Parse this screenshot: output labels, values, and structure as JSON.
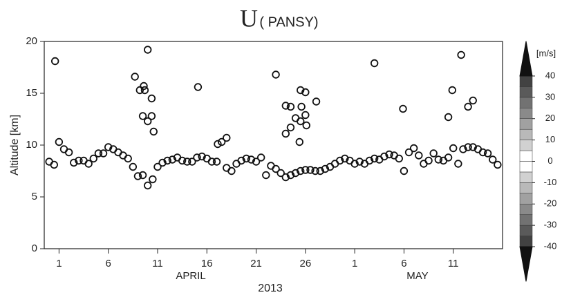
{
  "chart_data": {
    "type": "scatter",
    "title": "U",
    "subtitle": "( PANSY)",
    "y_label": "Altitude [km]",
    "x_month_labels": [
      "APRIL",
      "MAY"
    ],
    "x_year_label": "2013",
    "xlim": [
      -0.5,
      46
    ],
    "ylim": [
      0,
      20
    ],
    "xticks": [
      1,
      6,
      11,
      16,
      21,
      26,
      {
        "value": 31,
        "label": "1"
      },
      {
        "value": 36,
        "label": "6"
      },
      {
        "value": 41,
        "label": "11"
      }
    ],
    "yticks": [
      0,
      5,
      10,
      15,
      20
    ],
    "series": [
      {
        "color": "#111111",
        "x": [
          0,
          0.5,
          1,
          1.5,
          2,
          2.5,
          3,
          3.5,
          4,
          4.5,
          5,
          5.5,
          6,
          6.5,
          7,
          7.5,
          8,
          8.5,
          9,
          9.5,
          10,
          10.5,
          11,
          11.5,
          12,
          12.5,
          13,
          13.5,
          14,
          14.5,
          15,
          15.5,
          16,
          16.5,
          17,
          17.5,
          18,
          18.5,
          19,
          19.5,
          20,
          20.5,
          21,
          21.5,
          22,
          22.5,
          23,
          23.5,
          24,
          24.5,
          25,
          25.5,
          26,
          26.5,
          27,
          27.5,
          28,
          28.5,
          29,
          29.5,
          30,
          30.5,
          31,
          31.5,
          32,
          32.5,
          33,
          33.5,
          34,
          34.5,
          35,
          35.5,
          36,
          36.5,
          37,
          37.5,
          38,
          38.5,
          39,
          39.5,
          40,
          40.5,
          41,
          41.5,
          42,
          42.5,
          43,
          43.5,
          44,
          44.5,
          45,
          45.5
        ],
        "values": [
          8.4,
          8.1,
          10.3,
          9.6,
          9.3,
          8.3,
          8.5,
          8.5,
          8.2,
          8.7,
          9.2,
          9.2,
          9.8,
          9.6,
          9.3,
          9.0,
          8.7,
          7.9,
          7.0,
          7.1,
          6.1,
          6.7,
          7.9,
          8.3,
          8.5,
          8.6,
          8.8,
          8.5,
          8.4,
          8.4,
          8.8,
          8.9,
          8.7,
          8.4,
          8.4,
          10.3,
          7.8,
          7.5,
          8.2,
          8.5,
          8.7,
          8.6,
          8.4,
          8.8,
          7.1,
          8.0,
          7.7,
          7.3,
          6.9,
          7.1,
          7.3,
          7.5,
          7.6,
          7.6,
          7.5,
          7.5,
          7.7,
          7.9,
          8.2,
          8.5,
          8.7,
          8.5,
          8.2,
          8.4,
          8.2,
          8.5,
          8.7,
          8.6,
          8.9,
          9.1,
          9.0,
          8.7,
          7.5,
          9.3,
          9.7,
          9.0,
          8.2,
          8.5,
          9.2,
          8.6,
          8.5,
          8.8,
          9.7,
          8.2,
          9.6,
          9.8,
          9.8,
          9.6,
          9.3,
          9.2,
          8.6,
          8.1
        ]
      },
      {
        "color": "#111111",
        "x": [
          0.6,
          8.7,
          10.0,
          9.2,
          9.6,
          9.7,
          9.5,
          10.0,
          10.4,
          10.6,
          10.4,
          15.1,
          17.1,
          18.0,
          23.0,
          24.0,
          24.5,
          24.0,
          24.5,
          25.0,
          25.5,
          26.0,
          25.6,
          25.5,
          26.0,
          26.1,
          27.1,
          25.4,
          33.0,
          35.9,
          41.8,
          40.9,
          40.5,
          42.5,
          43.0
        ],
        "values": [
          18.1,
          16.6,
          19.2,
          15.3,
          15.7,
          15.3,
          12.8,
          12.3,
          12.8,
          11.3,
          14.5,
          15.6,
          10.1,
          10.7,
          16.8,
          13.8,
          13.7,
          11.1,
          11.7,
          12.6,
          15.3,
          15.1,
          13.7,
          12.3,
          12.9,
          11.9,
          14.2,
          10.3,
          17.9,
          13.5,
          18.7,
          15.3,
          12.7,
          13.7,
          14.3
        ]
      }
    ],
    "colorbar": {
      "label": "[m/s]",
      "lim": [
        -45,
        45
      ],
      "ticks": [
        40,
        30,
        20,
        10,
        0,
        -10,
        -20,
        -30,
        -40
      ]
    }
  }
}
